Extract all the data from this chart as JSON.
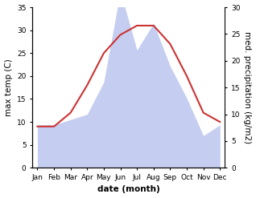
{
  "months": [
    "Jan",
    "Feb",
    "Mar",
    "Apr",
    "May",
    "Jun",
    "Jul",
    "Aug",
    "Sep",
    "Oct",
    "Nov",
    "Dec"
  ],
  "max_temp": [
    9.0,
    9.0,
    12.0,
    18.0,
    25.0,
    29.0,
    31.0,
    31.0,
    27.0,
    20.0,
    12.0,
    10.0
  ],
  "precipitation": [
    8.0,
    8.0,
    9.0,
    10.0,
    16.0,
    33.0,
    22.0,
    27.0,
    19.0,
    13.0,
    6.0,
    8.0
  ],
  "temp_color": "#cc3333",
  "precip_fill_color": "#c5cef0",
  "background_color": "#ffffff",
  "ylabel_left": "max temp (C)",
  "ylabel_right": "med. precipitation (kg/m2)",
  "xlabel": "date (month)",
  "ylim_left": [
    0,
    35
  ],
  "ylim_right": [
    0,
    30
  ],
  "yticks_left": [
    0,
    5,
    10,
    15,
    20,
    25,
    30,
    35
  ],
  "yticks_right": [
    0,
    5,
    10,
    15,
    20,
    25,
    30
  ],
  "label_fontsize": 7.5,
  "tick_fontsize": 6.5
}
